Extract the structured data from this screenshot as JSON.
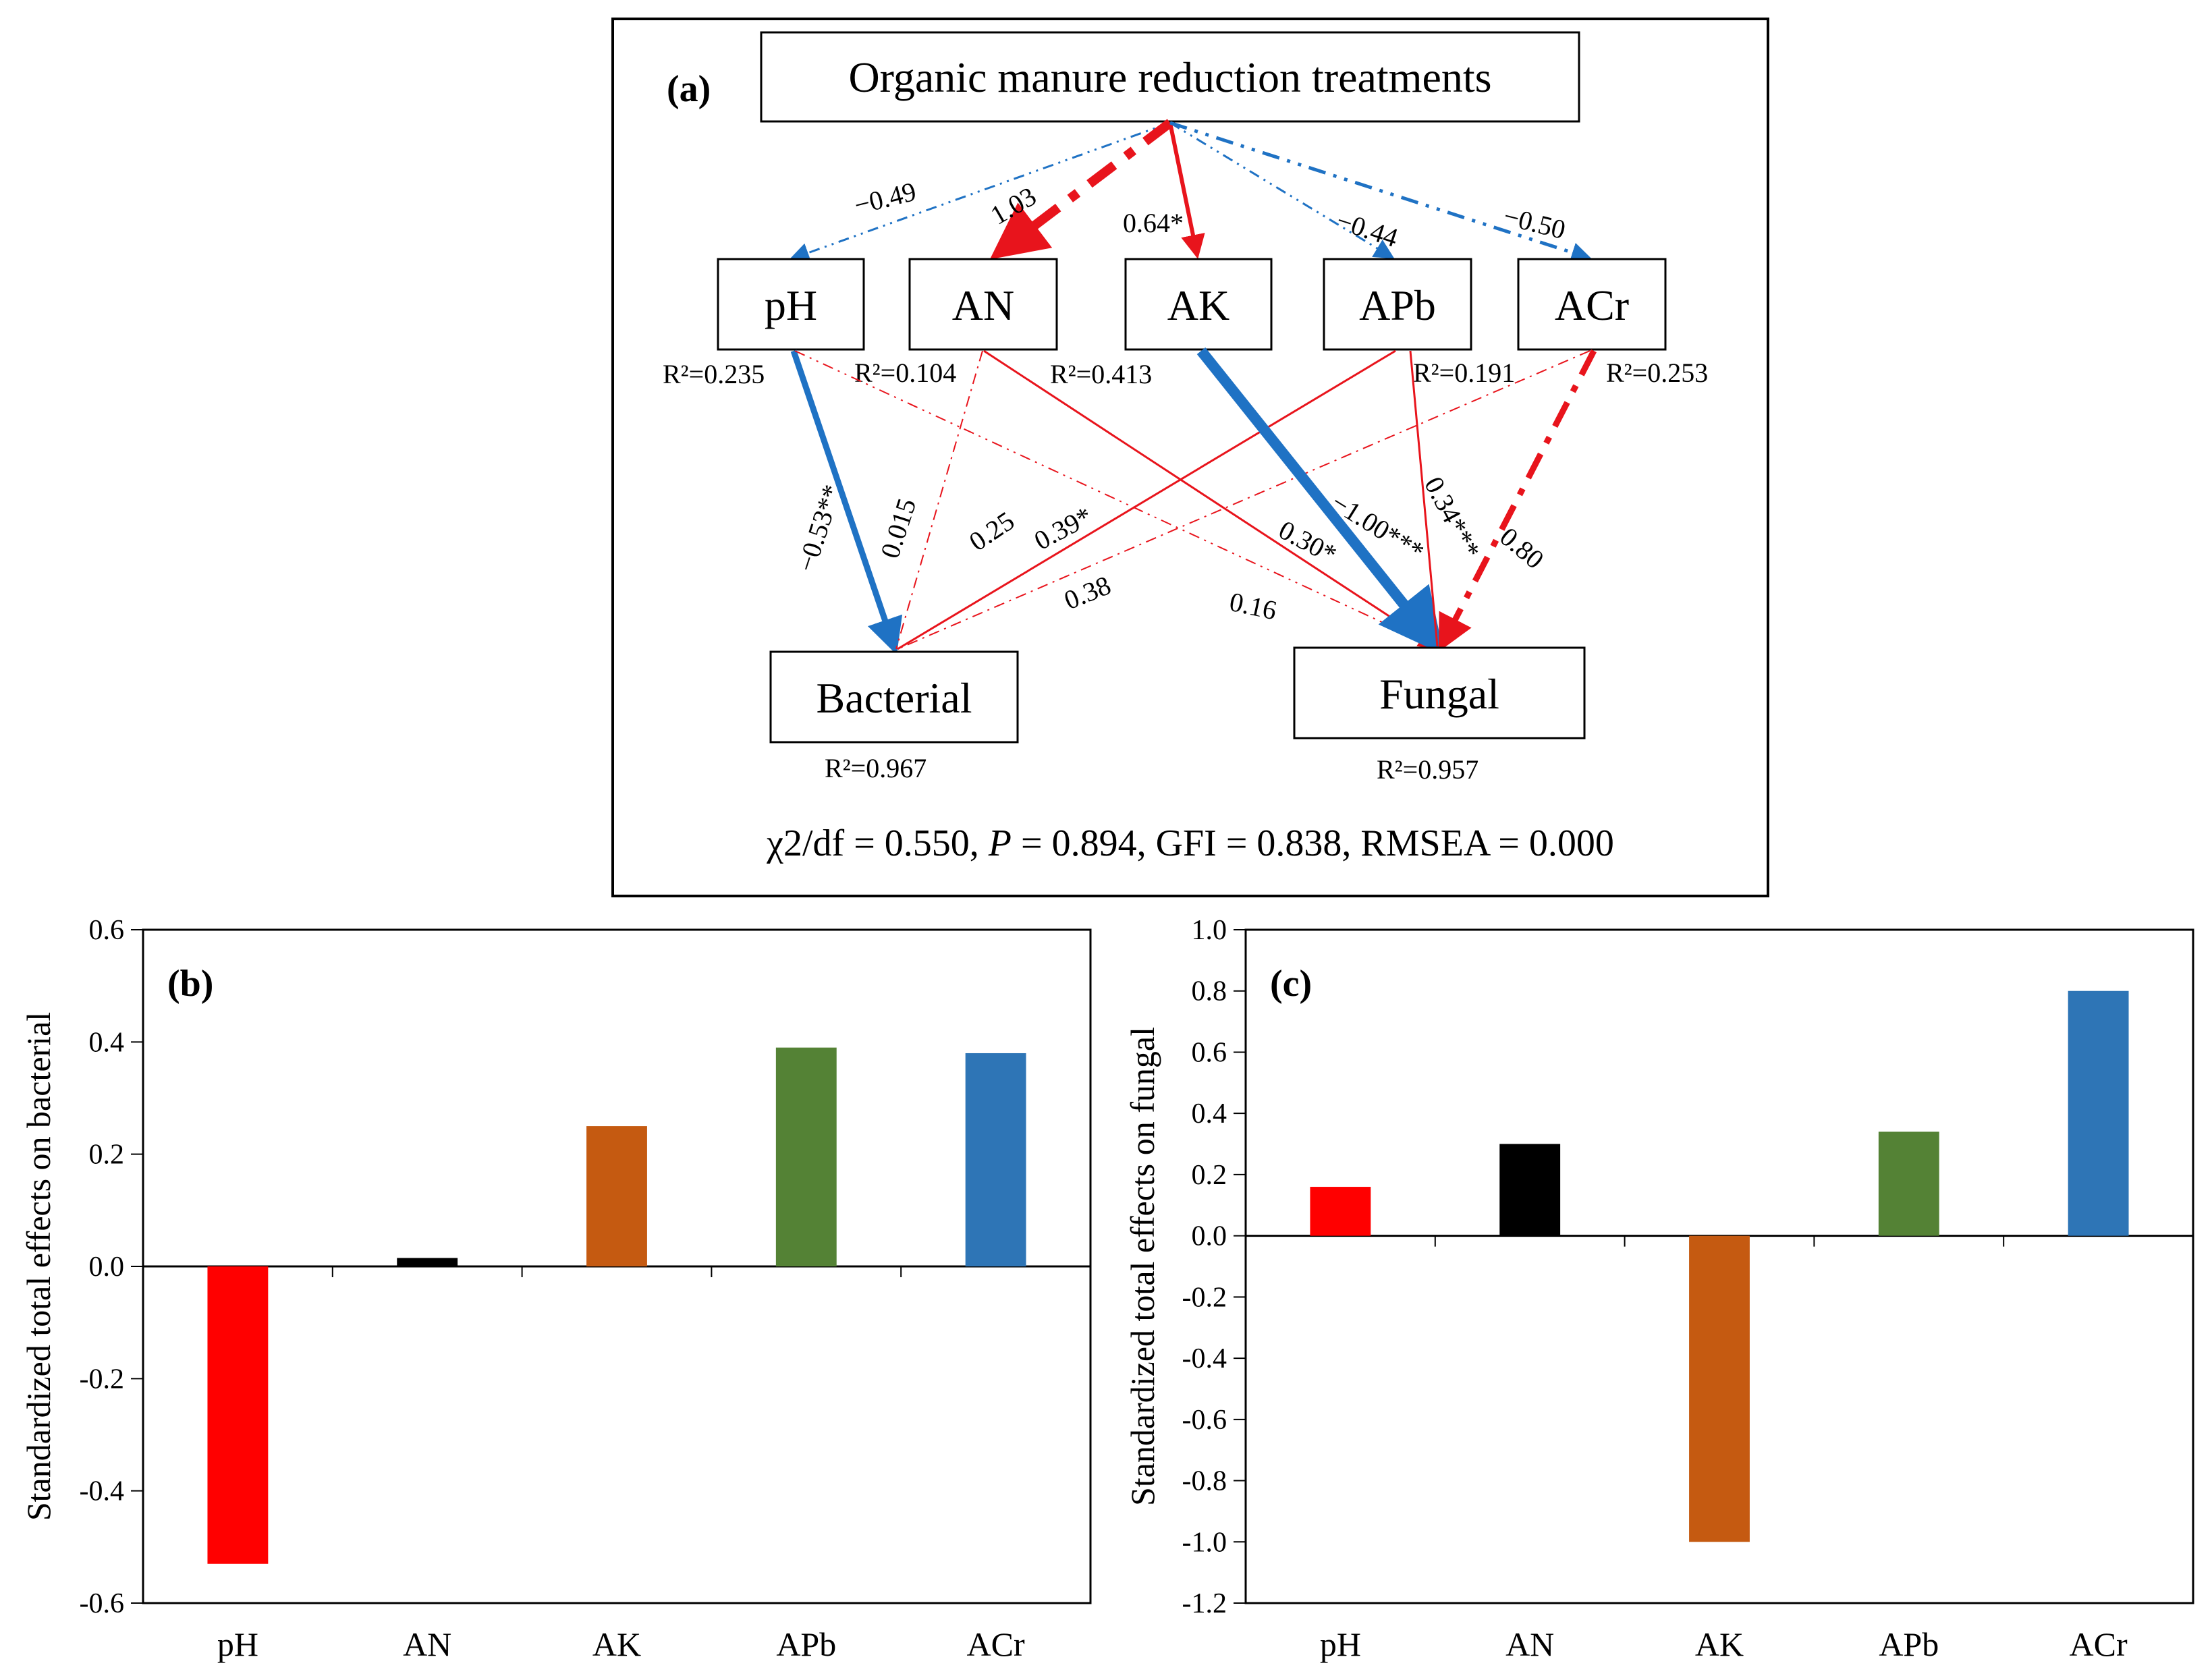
{
  "diagram": {
    "panel_label": "(a)",
    "top_node": "Organic manure reduction treatments",
    "nodes": [
      "pH",
      "AN",
      "AK",
      "APb",
      "ACr"
    ],
    "outcomes": [
      "Bacterial",
      "Fungal"
    ],
    "r2": {
      "pH": "R²=0.235",
      "AN": "R²=0.104",
      "AK": "R²=0.413",
      "APb": "R²=0.191",
      "ACr": "R²=0.253",
      "Bacterial": "R²=0.967",
      "Fungal": "R²=0.957"
    },
    "paths_top": {
      "pH": "−0.49",
      "AN": "1.03",
      "AK": "0.64*",
      "APb": "−0.44",
      "ACr": "−0.50"
    },
    "paths_bacterial": {
      "pH": "−0.53**",
      "AN": "0.015",
      "AK": "0.25",
      "APb": "0.39*",
      "ACr": "0.38"
    },
    "paths_fungal": {
      "pH": "0.16",
      "AN": "0.30*",
      "AK": "−1.00***",
      "APb": "0.34***",
      "ACr": "0.80"
    },
    "fit_prefix": "χ2/df = 0.550, ",
    "fit_p": "P",
    "fit_suffix": " = 0.894, GFI = 0.838, RMSEA = 0.000",
    "colors": {
      "positive": "#e8141c",
      "negative": "#1f72c4"
    }
  },
  "chart_data": [
    {
      "type": "bar",
      "panel_label": "(b)",
      "categories": [
        "pH",
        "AN",
        "AK",
        "APb",
        "ACr"
      ],
      "values": [
        -0.53,
        0.015,
        0.25,
        0.39,
        0.38
      ],
      "colors": [
        "#ff0000",
        "#000000",
        "#c55a11",
        "#548235",
        "#2e75b6"
      ],
      "ylabel": "Standardized total effects on bacterial",
      "ylim": [
        -0.6,
        0.6
      ],
      "yticks": [
        "0.6",
        "0.4",
        "0.2",
        "0.0",
        "-0.2",
        "-0.4",
        "-0.6"
      ],
      "grid": false
    },
    {
      "type": "bar",
      "panel_label": "(c)",
      "categories": [
        "pH",
        "AN",
        "AK",
        "APb",
        "ACr"
      ],
      "values": [
        0.16,
        0.3,
        -1.0,
        0.34,
        0.8
      ],
      "colors": [
        "#ff0000",
        "#000000",
        "#c55a11",
        "#548235",
        "#2e75b6"
      ],
      "ylabel": "Standardized total effects on fungal",
      "ylim": [
        -1.2,
        1.0
      ],
      "yticks": [
        "1.0",
        "0.8",
        "0.6",
        "0.4",
        "0.2",
        "0.0",
        "-0.2",
        "-0.4",
        "-0.6",
        "-0.8",
        "-1.0",
        "-1.2"
      ],
      "grid": false
    }
  ]
}
